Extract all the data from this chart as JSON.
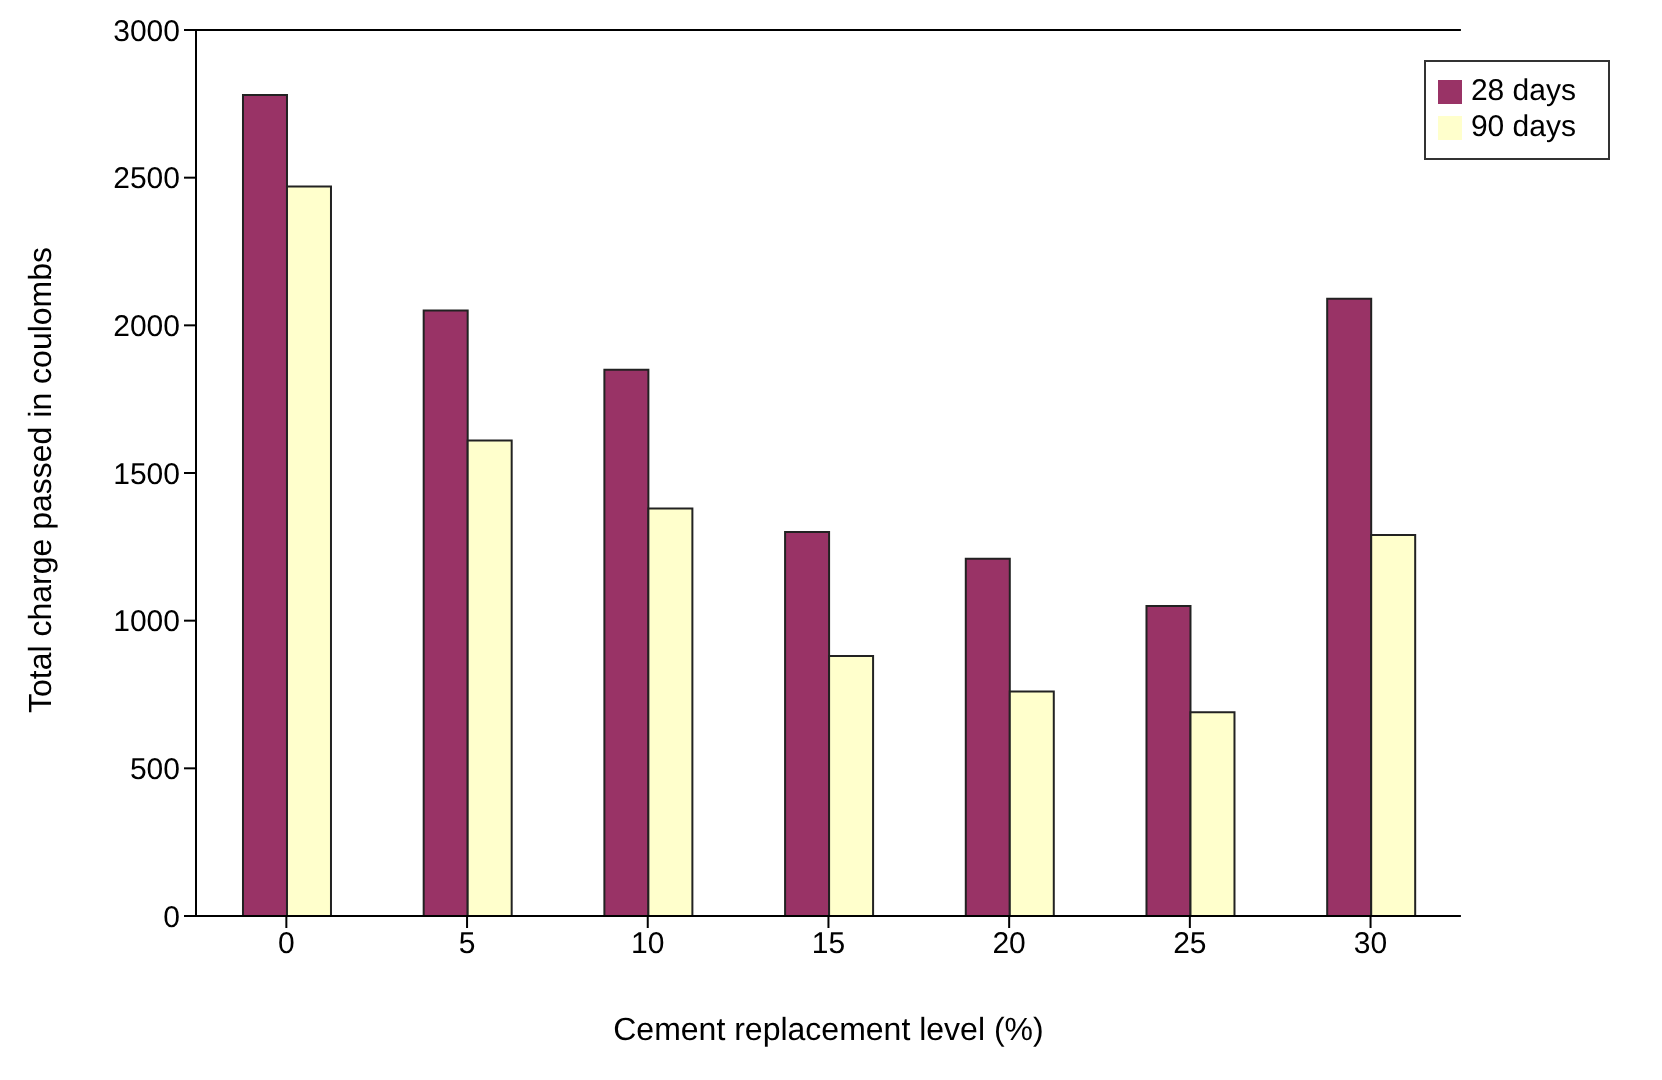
{
  "chart_data": {
    "type": "bar",
    "xlabel": "Cement replacement level (%)",
    "ylabel": "Total charge passed in coulombs",
    "categories": [
      "0",
      "5",
      "10",
      "15",
      "20",
      "25",
      "30"
    ],
    "series": [
      {
        "name": "28 days",
        "color": "#993366",
        "values": [
          2780,
          2050,
          1850,
          1300,
          1210,
          1050,
          2090
        ]
      },
      {
        "name": "90 days",
        "color": "#ffffcc",
        "values": [
          2470,
          1610,
          1380,
          880,
          760,
          690,
          1290
        ]
      }
    ],
    "ylim": [
      0,
      3000
    ],
    "yticks": [
      0,
      500,
      1000,
      1500,
      2000,
      2500,
      3000
    ],
    "grid": false,
    "legend": "top right"
  }
}
